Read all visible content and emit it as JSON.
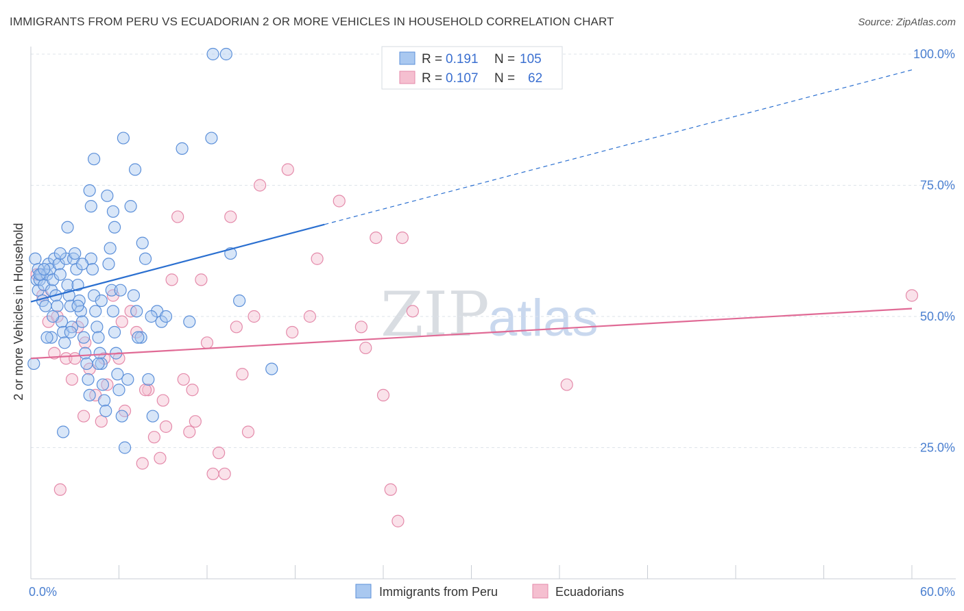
{
  "header": {
    "title": "IMMIGRANTS FROM PERU VS ECUADORIAN 2 OR MORE VEHICLES IN HOUSEHOLD CORRELATION CHART",
    "source": "Source: ZipAtlas.com"
  },
  "watermark": {
    "zip": "ZIP",
    "atlas": "atlas"
  },
  "colors": {
    "blue_fill": "#a9c8f0",
    "blue_stroke": "#5b8fd9",
    "blue_line": "#2a6fd0",
    "pink_fill": "#f5bfd0",
    "pink_stroke": "#e48aaa",
    "pink_line": "#e06a95",
    "tick_label": "#4a7fd0",
    "grid": "#dde3ea"
  },
  "legend": {
    "rows": [
      {
        "r_label": "R =",
        "r_value": "0.191",
        "n_label": "N =",
        "n_value": "105",
        "color": "blue"
      },
      {
        "r_label": "R =",
        "r_value": "0.107",
        "n_label": "N =",
        "n_value": "62",
        "color": "pink"
      }
    ]
  },
  "chart_data": {
    "type": "scatter",
    "title": "IMMIGRANTS FROM PERU VS ECUADORIAN 2 OR MORE VEHICLES IN HOUSEHOLD CORRELATION CHART",
    "xlabel": "",
    "ylabel": "2 or more Vehicles in Household",
    "xlim": [
      0,
      60
    ],
    "ylim": [
      0,
      100
    ],
    "x_tick_labels": [
      "0.0%",
      "60.0%"
    ],
    "y_ticks": [
      25,
      50,
      75,
      100
    ],
    "y_tick_labels": [
      "25.0%",
      "50.0%",
      "75.0%",
      "100.0%"
    ],
    "grid": true,
    "legend_position": "top-center",
    "series": [
      {
        "name": "Immigrants from Peru",
        "color": "blue",
        "trend": {
          "x0": 0,
          "y0": 52.8,
          "x1": 60,
          "y1": 97.0,
          "solid_until_x": 20.0
        },
        "points": [
          [
            0.3,
            61
          ],
          [
            0.4,
            57
          ],
          [
            0.5,
            59
          ],
          [
            0.5,
            55
          ],
          [
            0.6,
            57
          ],
          [
            0.7,
            58
          ],
          [
            0.8,
            53
          ],
          [
            0.9,
            56
          ],
          [
            1.0,
            52
          ],
          [
            1.1,
            58
          ],
          [
            1.2,
            60
          ],
          [
            1.3,
            59
          ],
          [
            1.4,
            55
          ],
          [
            1.5,
            57
          ],
          [
            1.6,
            61
          ],
          [
            1.7,
            54
          ],
          [
            1.8,
            52
          ],
          [
            1.9,
            60
          ],
          [
            2.0,
            58
          ],
          [
            2.1,
            49
          ],
          [
            2.2,
            47
          ],
          [
            2.3,
            45
          ],
          [
            2.4,
            61
          ],
          [
            2.5,
            56
          ],
          [
            2.6,
            54
          ],
          [
            2.7,
            52
          ],
          [
            2.8,
            48
          ],
          [
            2.9,
            61
          ],
          [
            3.0,
            62
          ],
          [
            3.1,
            59
          ],
          [
            3.2,
            56
          ],
          [
            3.3,
            53
          ],
          [
            3.4,
            51
          ],
          [
            3.5,
            49
          ],
          [
            3.6,
            46
          ],
          [
            3.7,
            43
          ],
          [
            3.8,
            41
          ],
          [
            3.9,
            38
          ],
          [
            4.0,
            35
          ],
          [
            4.1,
            61
          ],
          [
            4.2,
            59
          ],
          [
            4.3,
            54
          ],
          [
            4.4,
            51
          ],
          [
            4.5,
            48
          ],
          [
            4.6,
            46
          ],
          [
            4.7,
            43
          ],
          [
            4.8,
            41
          ],
          [
            4.9,
            37
          ],
          [
            5.0,
            34
          ],
          [
            5.1,
            32
          ],
          [
            5.3,
            60
          ],
          [
            5.4,
            63
          ],
          [
            5.5,
            55
          ],
          [
            5.6,
            51
          ],
          [
            5.7,
            47
          ],
          [
            5.8,
            43
          ],
          [
            5.9,
            39
          ],
          [
            6.0,
            36
          ],
          [
            6.2,
            31
          ],
          [
            6.4,
            25
          ],
          [
            2.5,
            67
          ],
          [
            4.0,
            74
          ],
          [
            4.1,
            71
          ],
          [
            4.3,
            80
          ],
          [
            5.2,
            73
          ],
          [
            5.6,
            70
          ],
          [
            5.7,
            67
          ],
          [
            6.3,
            84
          ],
          [
            7.1,
            78
          ],
          [
            6.8,
            71
          ],
          [
            7.6,
            64
          ],
          [
            7.8,
            61
          ],
          [
            7.0,
            54
          ],
          [
            7.2,
            51
          ],
          [
            7.5,
            46
          ],
          [
            8.0,
            38
          ],
          [
            8.3,
            31
          ],
          [
            8.6,
            51
          ],
          [
            8.9,
            49
          ],
          [
            9.2,
            50
          ],
          [
            10.3,
            82
          ],
          [
            10.8,
            49
          ],
          [
            12.3,
            84
          ],
          [
            12.4,
            100
          ],
          [
            13.3,
            100
          ],
          [
            13.6,
            62
          ],
          [
            14.2,
            53
          ],
          [
            16.4,
            40
          ],
          [
            1.4,
            46
          ],
          [
            0.2,
            41
          ],
          [
            0.6,
            58
          ],
          [
            0.9,
            59
          ],
          [
            1.5,
            50
          ],
          [
            2.0,
            62
          ],
          [
            2.7,
            47
          ],
          [
            3.2,
            52
          ],
          [
            3.5,
            60
          ],
          [
            4.8,
            53
          ],
          [
            6.1,
            55
          ],
          [
            6.6,
            38
          ],
          [
            7.3,
            46
          ],
          [
            8.2,
            50
          ],
          [
            2.2,
            28
          ],
          [
            4.6,
            41
          ],
          [
            1.1,
            46
          ]
        ]
      },
      {
        "name": "Ecuadorians",
        "color": "pink",
        "trend": {
          "x0": 0,
          "y0": 42.0,
          "x1": 60,
          "y1": 51.5,
          "solid_until_x": 60
        },
        "points": [
          [
            0.4,
            58
          ],
          [
            0.8,
            54
          ],
          [
            1.2,
            49
          ],
          [
            1.6,
            43
          ],
          [
            2.0,
            17
          ],
          [
            2.4,
            42
          ],
          [
            2.8,
            38
          ],
          [
            3.2,
            48
          ],
          [
            3.6,
            31
          ],
          [
            4.0,
            40
          ],
          [
            4.4,
            35
          ],
          [
            4.8,
            30
          ],
          [
            5.2,
            37
          ],
          [
            5.6,
            54
          ],
          [
            6.0,
            42
          ],
          [
            6.4,
            32
          ],
          [
            6.8,
            51
          ],
          [
            7.2,
            47
          ],
          [
            7.6,
            22
          ],
          [
            8.0,
            36
          ],
          [
            8.4,
            27
          ],
          [
            8.8,
            23
          ],
          [
            9.2,
            29
          ],
          [
            9.6,
            57
          ],
          [
            10.0,
            69
          ],
          [
            10.4,
            38
          ],
          [
            10.8,
            28
          ],
          [
            11.2,
            30
          ],
          [
            11.6,
            57
          ],
          [
            12.0,
            45
          ],
          [
            12.4,
            20
          ],
          [
            12.8,
            24
          ],
          [
            13.2,
            20
          ],
          [
            13.6,
            69
          ],
          [
            14.0,
            48
          ],
          [
            14.4,
            39
          ],
          [
            14.8,
            28
          ],
          [
            15.2,
            50
          ],
          [
            15.6,
            75
          ],
          [
            17.5,
            78
          ],
          [
            17.8,
            47
          ],
          [
            19.0,
            50
          ],
          [
            19.5,
            61
          ],
          [
            21.0,
            72
          ],
          [
            22.5,
            48
          ],
          [
            22.8,
            44
          ],
          [
            23.5,
            65
          ],
          [
            24.0,
            35
          ],
          [
            24.5,
            17
          ],
          [
            25.0,
            11
          ],
          [
            25.3,
            65
          ],
          [
            26.0,
            51
          ],
          [
            36.5,
            37
          ],
          [
            60.0,
            54
          ],
          [
            3.7,
            45
          ],
          [
            5.0,
            42
          ],
          [
            6.2,
            49
          ],
          [
            7.8,
            36
          ],
          [
            9.0,
            34
          ],
          [
            11.0,
            36
          ],
          [
            3.0,
            42
          ],
          [
            1.8,
            50
          ]
        ]
      }
    ]
  },
  "bottom_legend": {
    "items": [
      {
        "label": "Immigrants from Peru",
        "color": "blue"
      },
      {
        "label": "Ecuadorians",
        "color": "pink"
      }
    ]
  }
}
